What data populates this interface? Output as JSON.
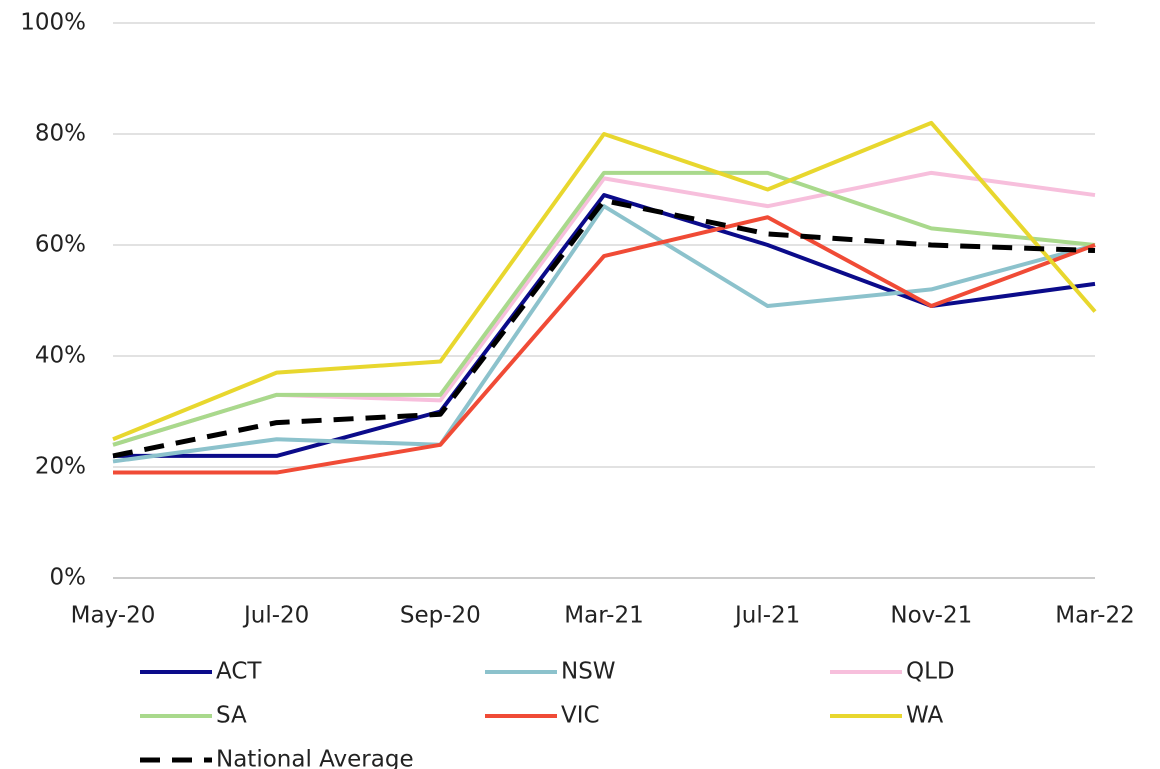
{
  "chart_data": {
    "type": "line",
    "categories": [
      "May-20",
      "Jul-20",
      "Sep-20",
      "Mar-21",
      "Jul-21",
      "Nov-21",
      "Mar-22"
    ],
    "ylim": [
      0,
      100
    ],
    "yticks": [
      {
        "value": 0,
        "label": "0%"
      },
      {
        "value": 20,
        "label": "20%"
      },
      {
        "value": 40,
        "label": "40%"
      },
      {
        "value": 60,
        "label": "60%"
      },
      {
        "value": 80,
        "label": "80%"
      },
      {
        "value": 100,
        "label": "100%"
      }
    ],
    "grid": true,
    "legend": "bottom",
    "series": [
      {
        "name": "ACT",
        "color": "#0b0b8a",
        "values": [
          22,
          22,
          30,
          69,
          60,
          49,
          53
        ]
      },
      {
        "name": "NSW",
        "color": "#8cc2cc",
        "values": [
          21,
          25,
          24,
          67,
          49,
          52,
          60
        ]
      },
      {
        "name": "QLD",
        "color": "#f7bfdc",
        "values": [
          24,
          33,
          32,
          72,
          67,
          73,
          69
        ]
      },
      {
        "name": "SA",
        "color": "#a9d98c",
        "values": [
          24,
          33,
          33,
          73,
          73,
          63,
          60
        ]
      },
      {
        "name": "VIC",
        "color": "#f04b36",
        "values": [
          19,
          19,
          24,
          58,
          65,
          49,
          60
        ]
      },
      {
        "name": "WA",
        "color": "#e8d72e",
        "values": [
          25,
          37,
          39,
          80,
          70,
          82,
          48
        ]
      },
      {
        "name": "National Average",
        "color": "#000000",
        "dashed": true,
        "values": [
          22,
          28,
          29.5,
          68,
          62,
          60,
          59
        ]
      }
    ]
  }
}
